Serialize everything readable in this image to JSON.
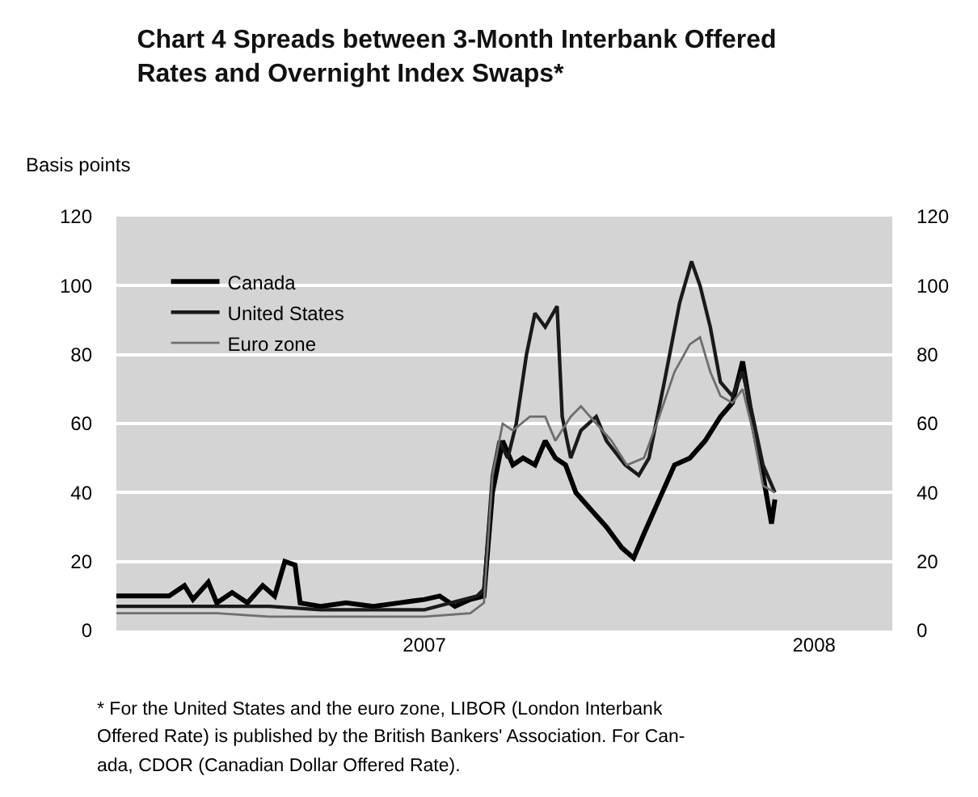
{
  "chart_data": {
    "type": "line",
    "title": "Chart 4 Spreads between 3-Month Interbank Offered Rates and Overnight Index Swaps*",
    "ylabel": "Basis points",
    "annotations": [
      "* For the United States and the euro zone, LIBOR (London Interbank",
      "Offered Rate) is published by the British Bankers' Association. For Can-",
      "ada, CDOR (Canadian Dollar Offered Rate)."
    ],
    "xlim": [
      "2007-01-01",
      "2008-04-01"
    ],
    "xticks": [
      {
        "value": "2007-07-01",
        "label": "2007"
      },
      {
        "value": "2008-02-15",
        "label": "2008"
      }
    ],
    "ylim": [
      0,
      120
    ],
    "yticks": [
      0,
      20,
      40,
      60,
      80,
      100,
      120
    ],
    "y2lim": [
      0,
      120
    ],
    "y2ticks": [
      0,
      20,
      40,
      60,
      80,
      100,
      120
    ],
    "grid": "y",
    "legend": "top left",
    "marker": "none",
    "line_style": "solid",
    "series": [
      {
        "name": "Canada",
        "color": "#000000",
        "x": [
          "2007-01-01",
          "2007-01-16",
          "2007-02-01",
          "2007-02-10",
          "2007-02-15",
          "2007-02-24",
          "2007-03-01",
          "2007-03-10",
          "2007-03-19",
          "2007-03-28",
          "2007-04-04",
          "2007-04-10",
          "2007-04-16",
          "2007-04-19",
          "2007-05-01",
          "2007-05-16",
          "2007-06-01",
          "2007-06-16",
          "2007-07-01",
          "2007-07-10",
          "2007-07-19",
          "2007-07-28",
          "2007-08-05",
          "2007-08-10",
          "2007-08-16",
          "2007-08-22",
          "2007-08-28",
          "2007-09-04",
          "2007-09-10",
          "2007-09-16",
          "2007-09-22",
          "2007-09-28",
          "2007-10-07",
          "2007-10-16",
          "2007-10-25",
          "2007-11-01",
          "2007-11-07",
          "2007-11-16",
          "2007-11-25",
          "2007-12-04",
          "2007-12-13",
          "2007-12-22",
          "2007-12-29",
          "2008-01-04",
          "2008-01-10",
          "2008-01-16",
          "2008-01-21",
          "2008-01-23"
        ],
        "values": [
          10,
          10,
          10,
          13,
          9,
          14,
          8,
          11,
          8,
          13,
          10,
          20,
          19,
          8,
          7,
          8,
          7,
          8,
          9,
          10,
          7,
          9,
          10,
          40,
          55,
          48,
          50,
          48,
          55,
          50,
          48,
          40,
          35,
          30,
          24,
          21,
          28,
          38,
          48,
          50,
          55,
          62,
          66,
          78,
          60,
          45,
          31,
          38
        ]
      },
      {
        "name": "United States",
        "color": "#1a1a1a",
        "x": [
          "2007-01-01",
          "2007-02-01",
          "2007-03-01",
          "2007-04-01",
          "2007-05-01",
          "2007-06-01",
          "2007-07-01",
          "2007-08-01",
          "2007-08-05",
          "2007-08-10",
          "2007-08-14",
          "2007-08-19",
          "2007-08-24",
          "2007-08-30",
          "2007-09-04",
          "2007-09-10",
          "2007-09-17",
          "2007-09-20",
          "2007-09-25",
          "2007-10-01",
          "2007-10-10",
          "2007-10-16",
          "2007-10-27",
          "2007-11-04",
          "2007-11-10",
          "2007-11-19",
          "2007-11-28",
          "2007-12-05",
          "2007-12-10",
          "2007-12-16",
          "2007-12-22",
          "2007-12-29",
          "2008-01-04",
          "2008-01-10",
          "2008-01-16",
          "2008-01-23"
        ],
        "values": [
          7,
          7,
          7,
          7,
          6,
          6,
          6,
          10,
          12,
          45,
          55,
          50,
          60,
          80,
          92,
          88,
          94,
          62,
          50,
          58,
          62,
          55,
          48,
          45,
          50,
          72,
          95,
          107,
          100,
          88,
          72,
          68,
          75,
          62,
          48,
          40
        ]
      },
      {
        "name": "Euro zone",
        "color": "#6e6e6e",
        "x": [
          "2007-01-01",
          "2007-02-01",
          "2007-03-01",
          "2007-04-01",
          "2007-05-01",
          "2007-06-01",
          "2007-07-01",
          "2007-07-28",
          "2007-08-05",
          "2007-08-10",
          "2007-08-16",
          "2007-08-22",
          "2007-09-01",
          "2007-09-10",
          "2007-09-16",
          "2007-09-25",
          "2007-10-01",
          "2007-10-10",
          "2007-10-19",
          "2007-10-28",
          "2007-11-07",
          "2007-11-16",
          "2007-11-25",
          "2007-12-04",
          "2007-12-10",
          "2007-12-16",
          "2007-12-22",
          "2007-12-29",
          "2008-01-04",
          "2008-01-10",
          "2008-01-16",
          "2008-01-23"
        ],
        "values": [
          5,
          5,
          5,
          4,
          4,
          4,
          4,
          5,
          8,
          45,
          60,
          58,
          62,
          62,
          55,
          62,
          65,
          60,
          55,
          48,
          50,
          62,
          75,
          83,
          85,
          75,
          68,
          66,
          70,
          58,
          42,
          40
        ]
      }
    ]
  }
}
